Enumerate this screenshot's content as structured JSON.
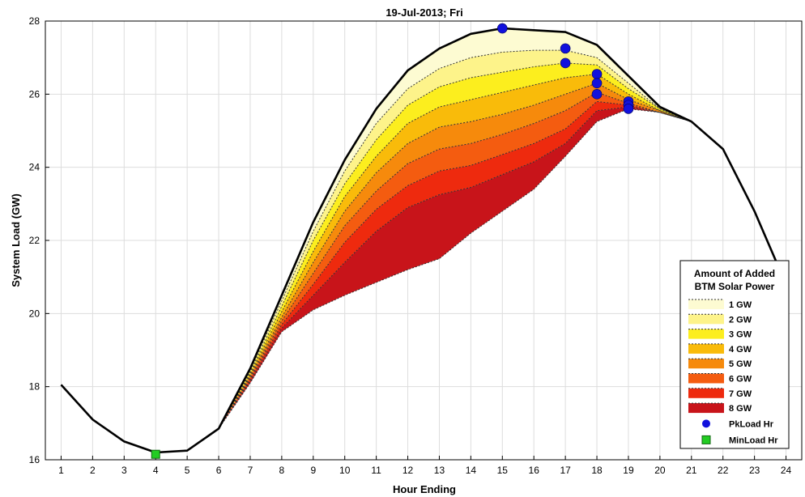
{
  "chart_data": {
    "type": "area",
    "title": "19-Jul-2013; Fri",
    "xlabel": "Hour Ending",
    "ylabel": "System Load (GW)",
    "xlim": [
      0.5,
      24.5
    ],
    "ylim": [
      16,
      28
    ],
    "xticks": [
      1,
      2,
      3,
      4,
      5,
      6,
      7,
      8,
      9,
      10,
      11,
      12,
      13,
      14,
      15,
      16,
      17,
      18,
      19,
      20,
      21,
      22,
      23,
      24
    ],
    "yticks": [
      16,
      18,
      20,
      22,
      24,
      26,
      28
    ],
    "grid": true,
    "legend": {
      "title_lines": [
        "Amount of Added",
        "BTM Solar Power"
      ],
      "position": "bottom-right"
    },
    "x": [
      1,
      2,
      3,
      4,
      5,
      6,
      7,
      8,
      9,
      10,
      11,
      12,
      13,
      14,
      15,
      16,
      17,
      18,
      19,
      20,
      21,
      22,
      23,
      24
    ],
    "base_load": [
      18.05,
      17.1,
      16.5,
      16.2,
      16.25,
      16.85,
      18.5,
      20.5,
      22.5,
      24.2,
      25.6,
      26.65,
      27.25,
      27.65,
      27.8,
      27.75,
      27.7,
      27.35,
      26.5,
      25.65,
      25.25,
      24.5,
      22.8,
      20.8
    ],
    "series": [
      {
        "name": "1 GW",
        "color": "#fdfbd2",
        "values": [
          18.05,
          17.1,
          16.5,
          16.2,
          16.25,
          16.85,
          18.45,
          20.35,
          22.25,
          23.9,
          25.2,
          26.15,
          26.7,
          27.0,
          27.15,
          27.2,
          27.2,
          27.0,
          26.3,
          25.6,
          25.25,
          24.5,
          22.8,
          20.8
        ]
      },
      {
        "name": "2 GW",
        "color": "#fdf38a",
        "values": [
          18.05,
          17.1,
          16.5,
          16.2,
          16.25,
          16.85,
          18.4,
          20.2,
          22.0,
          23.55,
          24.75,
          25.7,
          26.2,
          26.45,
          26.6,
          26.75,
          26.85,
          26.8,
          26.15,
          25.6,
          25.25,
          24.5,
          22.8,
          20.8
        ]
      },
      {
        "name": "3 GW",
        "color": "#fcee1e",
        "values": [
          18.05,
          17.1,
          16.5,
          16.2,
          16.25,
          16.85,
          18.35,
          20.05,
          21.7,
          23.2,
          24.3,
          25.2,
          25.65,
          25.85,
          26.05,
          26.25,
          26.45,
          26.55,
          26.0,
          25.55,
          25.25,
          24.5,
          22.8,
          20.8
        ]
      },
      {
        "name": "4 GW",
        "color": "#f9bb0a",
        "values": [
          18.05,
          17.1,
          16.5,
          16.2,
          16.25,
          16.85,
          18.3,
          19.9,
          21.4,
          22.8,
          23.85,
          24.65,
          25.1,
          25.25,
          25.45,
          25.7,
          26.0,
          26.3,
          25.85,
          25.55,
          25.25,
          24.5,
          22.8,
          20.8
        ]
      },
      {
        "name": "5 GW",
        "color": "#f68a0c",
        "values": [
          18.05,
          17.1,
          16.5,
          16.2,
          16.25,
          16.85,
          18.25,
          19.8,
          21.1,
          22.4,
          23.35,
          24.1,
          24.5,
          24.65,
          24.9,
          25.2,
          25.55,
          26.05,
          25.75,
          25.5,
          25.25,
          24.5,
          22.8,
          20.8
        ]
      },
      {
        "name": "6 GW",
        "color": "#f45c10",
        "values": [
          18.05,
          17.1,
          16.5,
          16.2,
          16.25,
          16.85,
          18.2,
          19.7,
          20.8,
          21.95,
          22.85,
          23.5,
          23.9,
          24.05,
          24.35,
          24.65,
          25.05,
          25.8,
          25.7,
          25.5,
          25.25,
          24.5,
          22.8,
          20.8
        ]
      },
      {
        "name": "7 GW",
        "color": "#ee2a0e",
        "values": [
          18.05,
          17.1,
          16.5,
          16.2,
          16.25,
          16.85,
          18.15,
          19.6,
          20.5,
          21.4,
          22.25,
          22.9,
          23.25,
          23.45,
          23.8,
          24.15,
          24.65,
          25.55,
          25.65,
          25.5,
          25.25,
          24.5,
          22.8,
          20.8
        ]
      },
      {
        "name": "8 GW",
        "color": "#c8141a",
        "values": [
          18.05,
          17.1,
          16.5,
          16.2,
          16.25,
          16.85,
          18.1,
          19.5,
          20.1,
          20.5,
          20.85,
          21.2,
          21.5,
          22.2,
          22.8,
          23.4,
          24.3,
          25.25,
          25.6,
          25.5,
          25.25,
          24.5,
          22.8,
          20.8
        ]
      }
    ],
    "peak_markers": {
      "name": "PkLoad Hr",
      "color": "#1111dd",
      "points": [
        [
          15,
          27.8
        ],
        [
          17,
          27.25
        ],
        [
          17,
          26.85
        ],
        [
          18,
          26.55
        ],
        [
          18,
          26.3
        ],
        [
          18,
          26.0
        ],
        [
          19,
          25.8
        ],
        [
          19,
          25.7
        ],
        [
          19,
          25.6
        ]
      ]
    },
    "min_marker": {
      "name": "MinLoad Hr",
      "color": "#22cc22",
      "point": [
        4,
        16.15
      ]
    }
  }
}
